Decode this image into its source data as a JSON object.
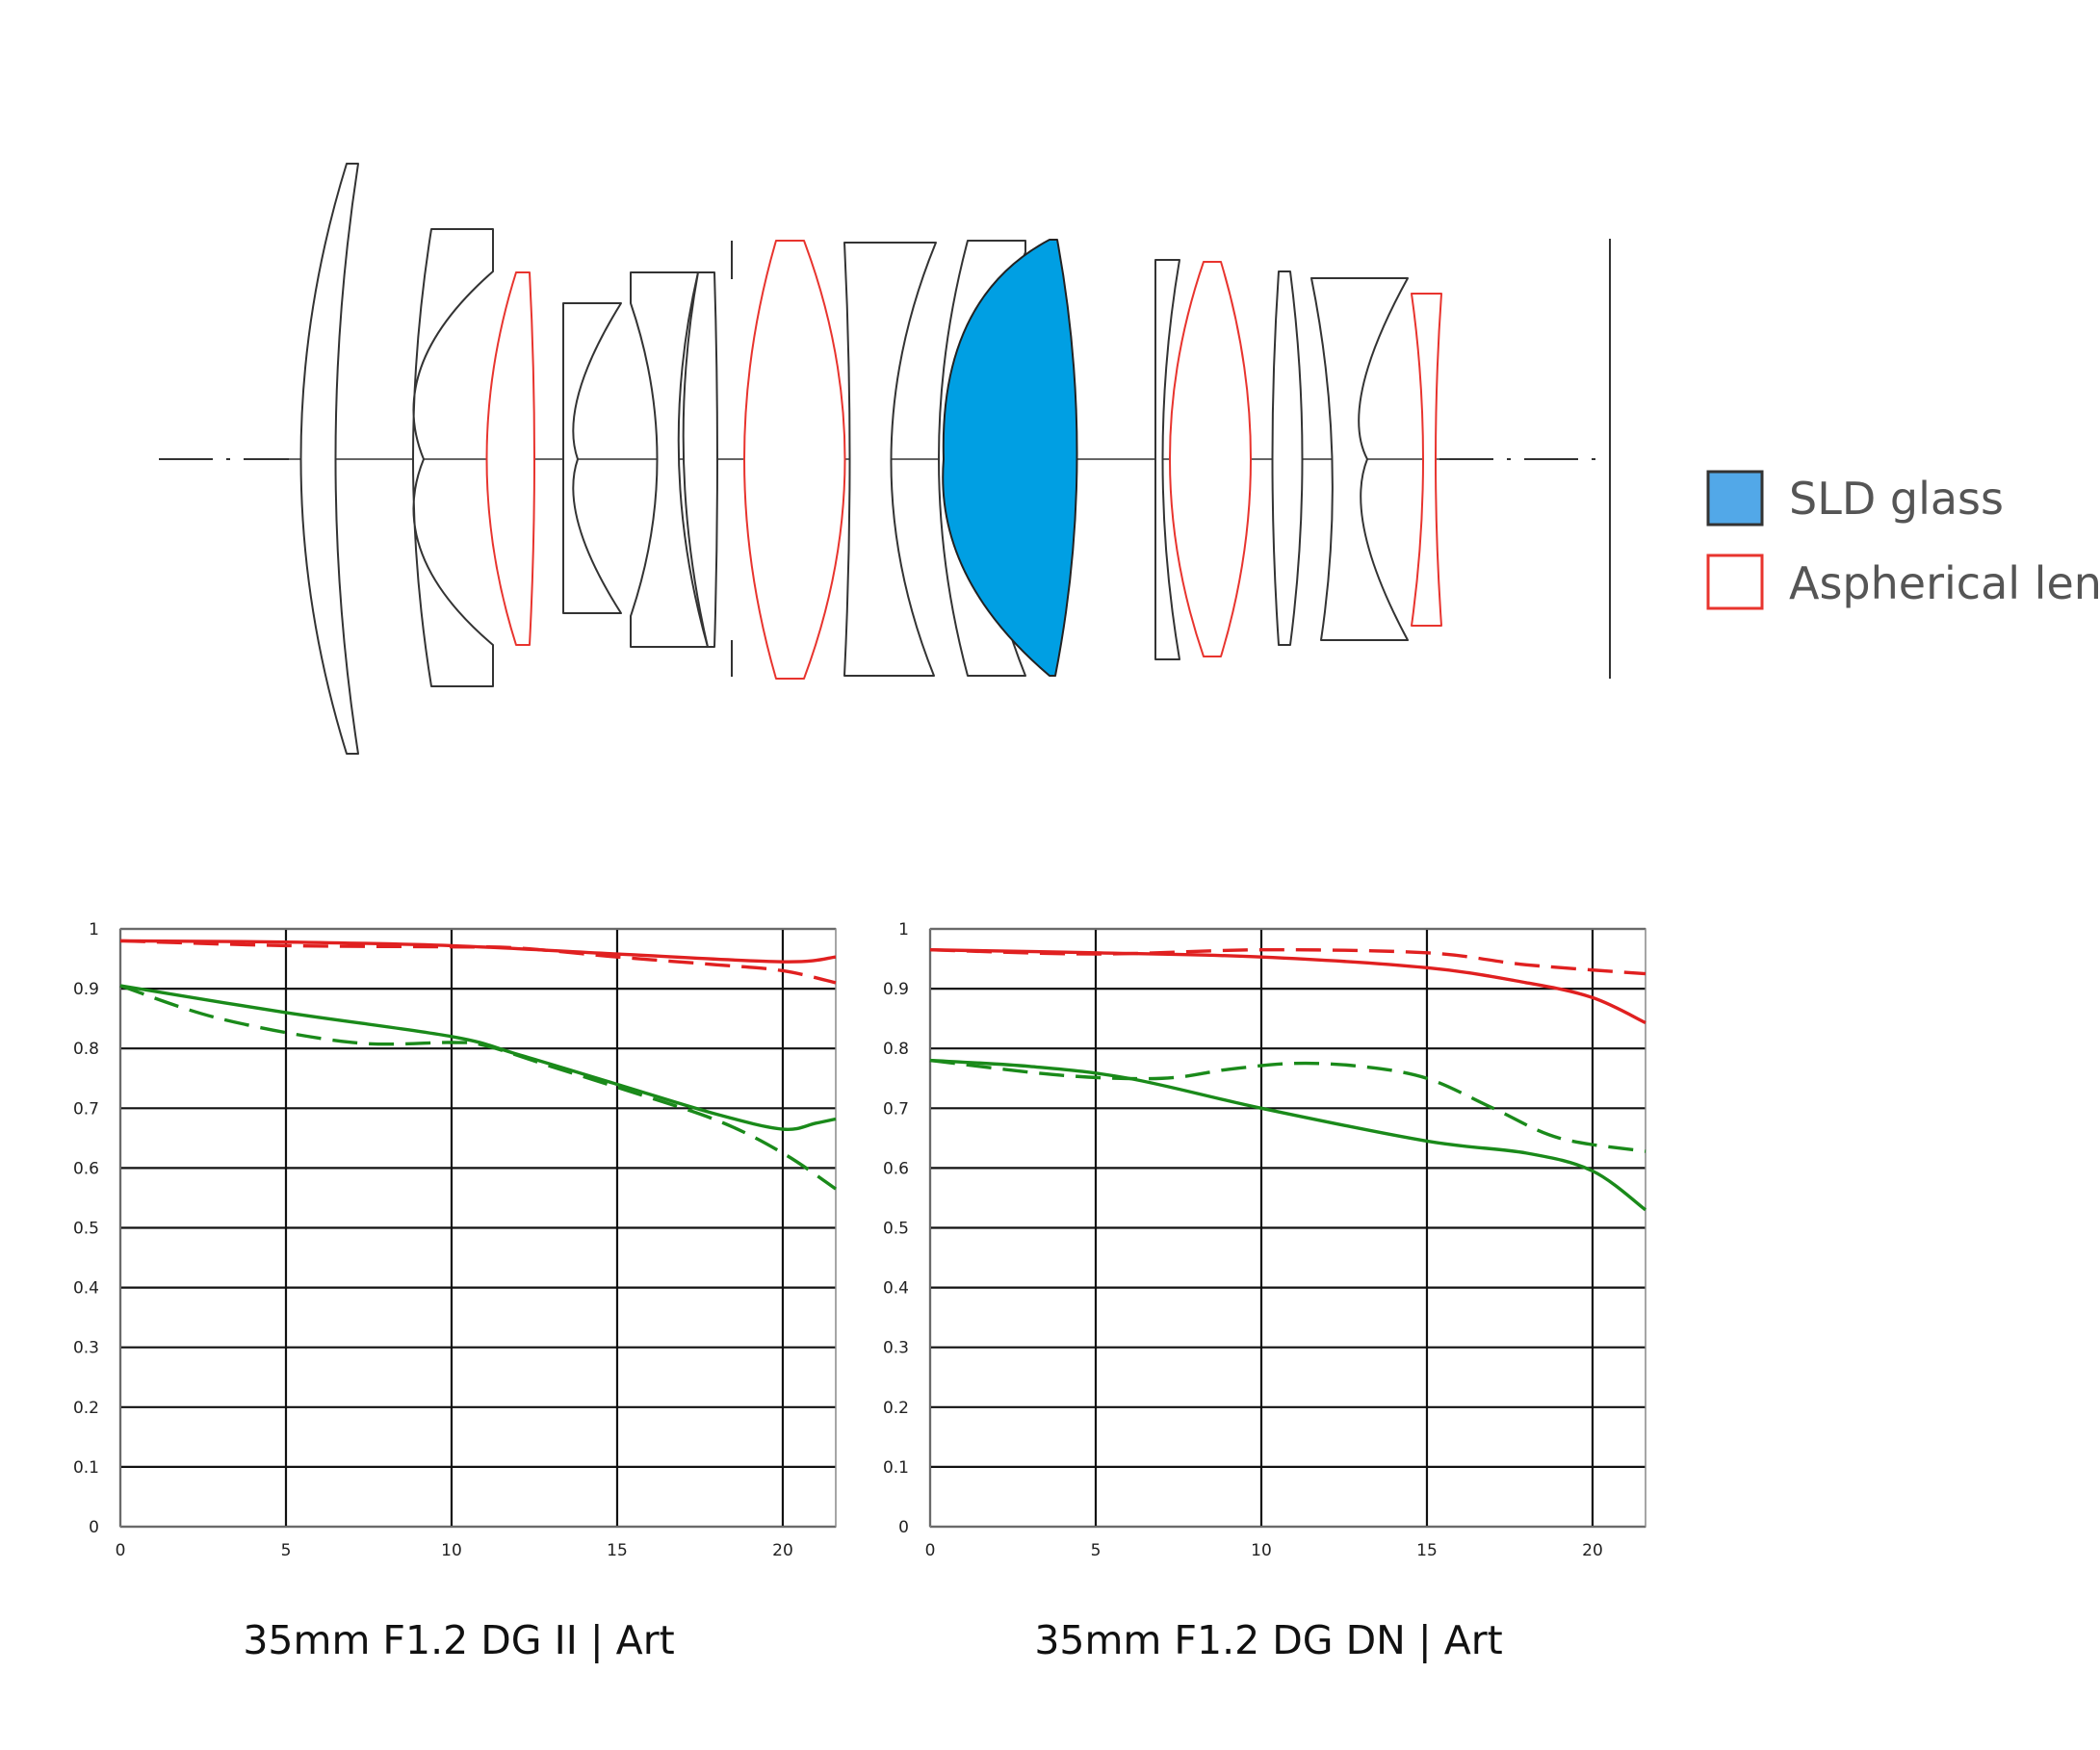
{
  "colors": {
    "sld_fill": "#009fe3",
    "aspherical_stroke": "#e8342e",
    "sagittal_color": "#e02020",
    "meridional_color": "#1a8a1a"
  },
  "legend": {
    "items": [
      {
        "label": "SLD glass",
        "icon": "filled-blue-square"
      },
      {
        "label": "Aspherical lens",
        "icon": "red-outline-square"
      }
    ]
  },
  "chart_data": [
    {
      "type": "line",
      "caption": "35mm F1.2 DG II | Art",
      "xlim": [
        0,
        21.6
      ],
      "ylim": [
        0,
        1
      ],
      "x_ticks": [
        "0",
        "5",
        "10",
        "15",
        "20"
      ],
      "y_ticks": [
        "0",
        "0.1",
        "0.2",
        "0.3",
        "0.4",
        "0.5",
        "0.6",
        "0.7",
        "0.8",
        "0.9",
        "1"
      ],
      "grid": true,
      "series": [
        {
          "color": "red",
          "style": "solid",
          "points": [
            [
              0,
              0.98
            ],
            [
              5,
              0.978
            ],
            [
              10,
              0.972
            ],
            [
              15,
              0.958
            ],
            [
              20,
              0.945
            ],
            [
              21.6,
              0.953
            ]
          ]
        },
        {
          "color": "red",
          "style": "dashed",
          "points": [
            [
              0,
              0.98
            ],
            [
              5,
              0.972
            ],
            [
              10,
              0.97
            ],
            [
              12,
              0.968
            ],
            [
              15,
              0.953
            ],
            [
              18,
              0.94
            ],
            [
              20,
              0.93
            ],
            [
              21.6,
              0.91
            ]
          ]
        },
        {
          "color": "green",
          "style": "solid",
          "points": [
            [
              0,
              0.905
            ],
            [
              5,
              0.86
            ],
            [
              10,
              0.82
            ],
            [
              12,
              0.79
            ],
            [
              15,
              0.74
            ],
            [
              18,
              0.69
            ],
            [
              20,
              0.665
            ],
            [
              21,
              0.675
            ],
            [
              21.6,
              0.682
            ]
          ]
        },
        {
          "color": "green",
          "style": "dashed",
          "points": [
            [
              0,
              0.905
            ],
            [
              3,
              0.85
            ],
            [
              7,
              0.81
            ],
            [
              10,
              0.81
            ],
            [
              11,
              0.805
            ],
            [
              13,
              0.77
            ],
            [
              15,
              0.735
            ],
            [
              18,
              0.68
            ],
            [
              20,
              0.625
            ],
            [
              21.6,
              0.565
            ]
          ]
        }
      ]
    },
    {
      "type": "line",
      "caption": "35mm F1.2 DG DN | Art",
      "xlim": [
        0,
        21.6
      ],
      "ylim": [
        0,
        1
      ],
      "x_ticks": [
        "0",
        "5",
        "10",
        "15",
        "20"
      ],
      "y_ticks": [
        "0",
        "0.1",
        "0.2",
        "0.3",
        "0.4",
        "0.5",
        "0.6",
        "0.7",
        "0.8",
        "0.9",
        "1"
      ],
      "grid": true,
      "series": [
        {
          "color": "red",
          "style": "solid",
          "points": [
            [
              0,
              0.965
            ],
            [
              5,
              0.96
            ],
            [
              10,
              0.953
            ],
            [
              15,
              0.935
            ],
            [
              18,
              0.91
            ],
            [
              20,
              0.885
            ],
            [
              21.6,
              0.843
            ]
          ]
        },
        {
          "color": "red",
          "style": "dashed",
          "points": [
            [
              0,
              0.965
            ],
            [
              5,
              0.958
            ],
            [
              10,
              0.965
            ],
            [
              15,
              0.96
            ],
            [
              18,
              0.94
            ],
            [
              21.6,
              0.925
            ]
          ]
        },
        {
          "color": "green",
          "style": "solid",
          "points": [
            [
              0,
              0.78
            ],
            [
              3,
              0.77
            ],
            [
              6,
              0.75
            ],
            [
              10,
              0.7
            ],
            [
              15,
              0.645
            ],
            [
              18,
              0.625
            ],
            [
              20,
              0.595
            ],
            [
              21.6,
              0.53
            ]
          ]
        },
        {
          "color": "green",
          "style": "dashed",
          "points": [
            [
              0,
              0.78
            ],
            [
              4,
              0.755
            ],
            [
              7,
              0.75
            ],
            [
              9,
              0.765
            ],
            [
              11,
              0.775
            ],
            [
              13,
              0.77
            ],
            [
              15,
              0.75
            ],
            [
              17,
              0.7
            ],
            [
              19,
              0.65
            ],
            [
              21.6,
              0.628
            ]
          ]
        }
      ]
    }
  ]
}
